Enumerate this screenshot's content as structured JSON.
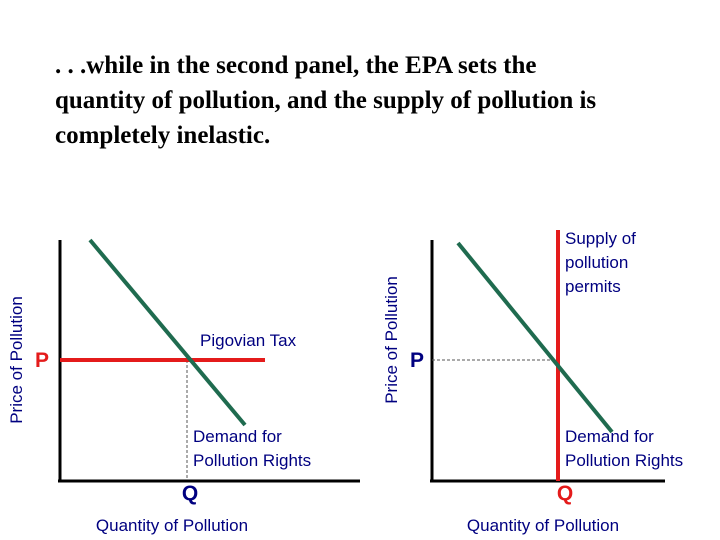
{
  "title": {
    "lines": [
      ". . .while in the second panel, the EPA sets the",
      "quantity of pollution, and the supply of pollution is",
      "completely inelastic."
    ]
  },
  "left_panel": {
    "y_axis_label": "Price of Pollution",
    "x_axis_label": "Quantity of Pollution",
    "price_label": "P",
    "quantity_label": "Q",
    "tax_label": "Pigovian Tax",
    "demand_label": [
      "Demand for",
      "Pollution Rights"
    ]
  },
  "right_panel": {
    "y_axis_label": "Price of Pollution",
    "x_axis_label": "Quantity of Pollution",
    "price_label": "P",
    "quantity_label": "Q",
    "supply_label": [
      "Supply of",
      "pollution",
      "permits"
    ],
    "demand_label": [
      "Demand for",
      "Pollution Rights"
    ]
  }
}
